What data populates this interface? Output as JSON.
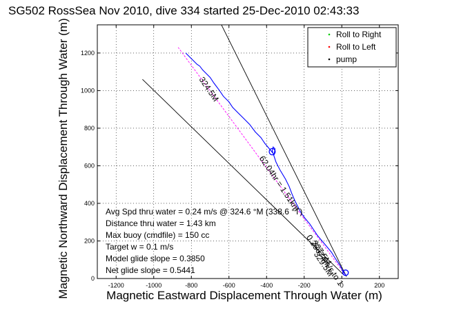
{
  "chart_data": {
    "type": "line",
    "title": "SG502 RossSea Nov 2010, dive 334 started 25-Dec-2010 02:43:33",
    "xlabel": "Magnetic Eastward Displacement Through Water (m)",
    "ylabel": "Magnetic Northward Displacement Through Water (m)",
    "xlim": [
      -1300,
      300
    ],
    "ylim": [
      0,
      1350
    ],
    "xticks": [
      -1200,
      -1000,
      -800,
      -600,
      -400,
      -200,
      0,
      200
    ],
    "yticks": [
      0,
      200,
      400,
      600,
      800,
      1000,
      1200
    ],
    "grid": true,
    "legend": {
      "position": "top-right",
      "entries": [
        {
          "label": "Roll to Right",
          "color": "#00cc00"
        },
        {
          "label": "Roll to Left",
          "color": "#ff0000"
        },
        {
          "label": "pump",
          "color": "#000000"
        }
      ]
    },
    "track": {
      "color": "#0000ff",
      "x": [
        20,
        5,
        -10,
        -30,
        -55,
        -80,
        -105,
        -130,
        -150,
        -170,
        -195,
        -220,
        -235,
        -250,
        -265,
        -280,
        -300,
        -330,
        -350,
        -360,
        -370,
        -365,
        -355,
        -360,
        -385,
        -410,
        -430,
        -460,
        -490,
        -520,
        -550,
        -580,
        -600,
        -630,
        -650,
        -680,
        -700,
        -720,
        -740,
        -755,
        -770,
        -790,
        -810,
        -830
      ],
      "y": [
        20,
        40,
        70,
        100,
        140,
        170,
        200,
        230,
        260,
        290,
        320,
        355,
        385,
        415,
        450,
        490,
        530,
        580,
        620,
        650,
        680,
        700,
        690,
        660,
        690,
        720,
        750,
        780,
        820,
        850,
        880,
        910,
        940,
        970,
        1000,
        1040,
        1070,
        1090,
        1110,
        1130,
        1140,
        1160,
        1180,
        1200
      ]
    },
    "loop": {
      "cx": -370,
      "cy": 675,
      "rx": 35,
      "ry": 22
    },
    "lines": [
      {
        "name": "current-vector",
        "color": "#000000",
        "x": [
          25,
          -650
        ],
        "y": [
          10,
          1370
        ]
      },
      {
        "name": "other-vector",
        "color": "#000000",
        "x": [
          10,
          -1060
        ],
        "y": [
          20,
          1060
        ]
      },
      {
        "name": "dashed-course",
        "color": "#ff00ff",
        "dash": true,
        "x": [
          15,
          -870
        ],
        "y": [
          25,
          1230
        ]
      }
    ],
    "annotations": [
      {
        "text": "324.5M",
        "rotation": 56,
        "x": -760,
        "y": 1060
      },
      {
        "text": "62.04hr = 1.51km",
        "rotation": 56,
        "x": -440,
        "y": 640
      },
      {
        "text": "0.25674m/s to 1",
        "rotation": 56,
        "x": -190,
        "y": 220
      },
      {
        "text": "327.5M",
        "rotation": 56,
        "x": -160,
        "y": 190
      },
      {
        "text": "329.5M",
        "rotation": 56,
        "x": -150,
        "y": 130
      }
    ],
    "stats": [
      "Avg Spd thru water =  0.24 m/s @ 324.6 °M (338.6 °T)",
      "Distance thru water =  1.43 km",
      "Max buoy (cmdfile) = 150 cc",
      "Target w = 0.1 m/s",
      "Model glide slope = 0.3850",
      "Net glide slope = 0.5441"
    ]
  }
}
